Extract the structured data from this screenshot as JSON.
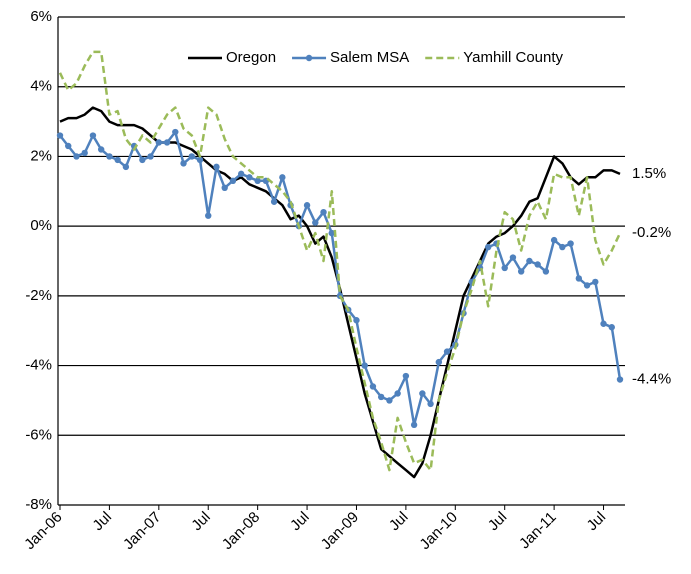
{
  "chart_data": {
    "type": "line",
    "categories": [
      "Jan-06",
      null,
      null,
      null,
      null,
      null,
      "Jul",
      null,
      null,
      null,
      null,
      null,
      "Jan-07",
      null,
      null,
      null,
      null,
      null,
      "Jul",
      null,
      null,
      null,
      null,
      null,
      "Jan-08",
      null,
      null,
      null,
      null,
      null,
      "Jul",
      null,
      null,
      null,
      null,
      null,
      "Jan-09",
      null,
      null,
      null,
      null,
      null,
      "Jul",
      null,
      null,
      null,
      null,
      null,
      "Jan-10",
      null,
      null,
      null,
      null,
      null,
      "Jul",
      null,
      null,
      null,
      null,
      null,
      "Jan-11",
      null,
      null,
      null,
      null,
      null,
      "Jul",
      null,
      null
    ],
    "series": [
      {
        "name": "Oregon",
        "color": "#000000",
        "style": "solid",
        "marker": "none",
        "values": [
          3.0,
          3.1,
          3.1,
          3.2,
          3.4,
          3.3,
          3.0,
          2.9,
          2.9,
          2.9,
          2.8,
          2.6,
          2.4,
          2.4,
          2.4,
          2.3,
          2.2,
          2.0,
          1.8,
          1.6,
          1.5,
          1.3,
          1.4,
          1.2,
          1.1,
          1.0,
          0.8,
          0.6,
          0.2,
          0.3,
          0.0,
          -0.5,
          -0.3,
          -0.9,
          -1.8,
          -2.8,
          -3.8,
          -4.8,
          -5.6,
          -6.4,
          -6.6,
          -6.8,
          -7.0,
          -7.2,
          -6.8,
          -6.0,
          -5.0,
          -4.0,
          -3.0,
          -2.0,
          -1.5,
          -1.0,
          -0.5,
          -0.3,
          -0.2,
          0.0,
          0.3,
          0.7,
          0.8,
          1.4,
          2.0,
          1.8,
          1.4,
          1.2,
          1.4,
          1.4,
          1.6,
          1.6,
          1.5
        ]
      },
      {
        "name": "Salem MSA",
        "color": "#4f81bd",
        "style": "solid",
        "marker": "circle",
        "values": [
          2.6,
          2.3,
          2.0,
          2.1,
          2.6,
          2.2,
          2.0,
          1.9,
          1.7,
          2.3,
          1.9,
          2.0,
          2.4,
          2.4,
          2.7,
          1.8,
          2.0,
          1.9,
          0.3,
          1.7,
          1.1,
          1.3,
          1.5,
          1.4,
          1.3,
          1.3,
          0.7,
          1.4,
          0.6,
          0.0,
          0.6,
          0.1,
          0.4,
          -0.2,
          -2.0,
          -2.4,
          -2.7,
          -4.0,
          -4.6,
          -4.9,
          -5.0,
          -4.8,
          -4.3,
          -5.7,
          -4.8,
          -5.1,
          -3.9,
          -3.6,
          -3.4,
          -2.5,
          -1.6,
          -1.2,
          -0.6,
          -0.5,
          -1.2,
          -0.9,
          -1.3,
          -1.0,
          -1.1,
          -1.3,
          -0.4,
          -0.6,
          -0.5,
          -1.5,
          -1.7,
          -1.6,
          -2.8,
          -2.9,
          -4.4
        ]
      },
      {
        "name": "Yamhill County",
        "color": "#9bbb59",
        "style": "dashed",
        "marker": "none",
        "values": [
          4.4,
          3.9,
          4.1,
          4.6,
          5.0,
          5.0,
          3.2,
          3.3,
          2.5,
          2.2,
          2.6,
          2.4,
          2.8,
          3.2,
          3.4,
          2.8,
          2.6,
          2.0,
          3.4,
          3.2,
          2.5,
          2.0,
          1.8,
          1.6,
          1.4,
          1.4,
          1.2,
          1.0,
          0.7,
          0.0,
          -0.7,
          -0.2,
          -1.0,
          1.0,
          -2.0,
          -2.4,
          -3.5,
          -4.5,
          -5.5,
          -6.2,
          -7.0,
          -5.5,
          -6.2,
          -6.8,
          -6.7,
          -7.0,
          -5.0,
          -4.2,
          -3.5,
          -2.5,
          -1.8,
          -1.0,
          -2.3,
          -0.7,
          0.4,
          0.2,
          -0.7,
          0.3,
          0.7,
          0.2,
          1.5,
          1.4,
          1.4,
          0.3,
          1.4,
          -0.4,
          -1.1,
          -0.7,
          -0.2
        ]
      }
    ],
    "annotations": [
      {
        "text": "1.5%",
        "value": 1.5
      },
      {
        "text": "-0.2%",
        "value": -0.2
      },
      {
        "text": "-4.4%",
        "value": -4.4
      }
    ],
    "ylim": [
      -8,
      6
    ],
    "yticks": [
      {
        "value": -8,
        "label": "-8%"
      },
      {
        "value": -6,
        "label": "-6%"
      },
      {
        "value": -4,
        "label": "-4%"
      },
      {
        "value": -2,
        "label": "-2%"
      },
      {
        "value": 0,
        "label": "0%"
      },
      {
        "value": 2,
        "label": "2%"
      },
      {
        "value": 4,
        "label": "4%"
      },
      {
        "value": 6,
        "label": "6%"
      }
    ],
    "grid": true,
    "legend": "top-right"
  }
}
